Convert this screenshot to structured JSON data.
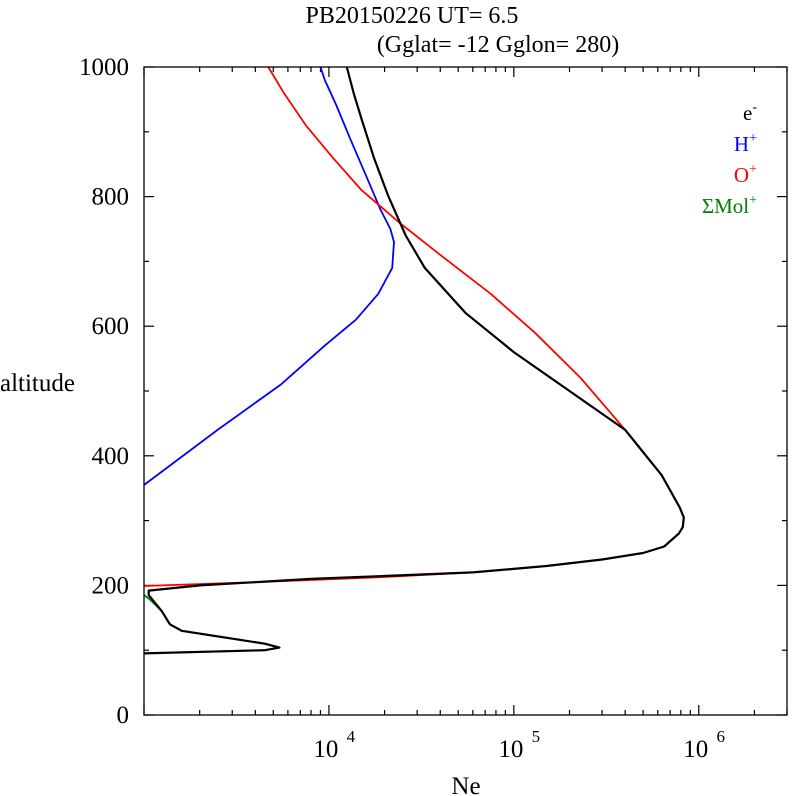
{
  "chart_data": {
    "type": "line",
    "title_line1": "PB20150226   UT=  6.5",
    "title_line2": "(Gglat= -12   Gglon=  280)",
    "xlabel": "Ne",
    "ylabel": "altitude",
    "x_scale": "log",
    "xlim": [
      1000,
      3000000
    ],
    "ylim": [
      0,
      1000
    ],
    "y_ticks": [
      {
        "value": 0,
        "label": "0"
      },
      {
        "value": 200,
        "label": "200"
      },
      {
        "value": 400,
        "label": "400"
      },
      {
        "value": 600,
        "label": "600"
      },
      {
        "value": 800,
        "label": "800"
      },
      {
        "value": 1000,
        "label": "1000"
      }
    ],
    "x_ticks": [
      {
        "value": 10000,
        "base": "10",
        "exp": "4"
      },
      {
        "value": 100000,
        "base": "10",
        "exp": "5"
      },
      {
        "value": 1000000,
        "base": "10",
        "exp": "6"
      }
    ],
    "grid": false,
    "legend_position": "top-right",
    "series": [
      {
        "name": "e-",
        "legend_base": "e",
        "legend_sup": "-",
        "color": "#000000",
        "points": [
          [
            12500,
            1000
          ],
          [
            13600,
            960
          ],
          [
            15000,
            920
          ],
          [
            17500,
            860
          ],
          [
            21000,
            800
          ],
          [
            26000,
            740
          ],
          [
            33000,
            690
          ],
          [
            55000,
            620
          ],
          [
            100000,
            560
          ],
          [
            200000,
            500
          ],
          [
            400000,
            440
          ],
          [
            630000,
            370
          ],
          [
            790000,
            320
          ],
          [
            830000,
            305
          ],
          [
            820000,
            290
          ],
          [
            780000,
            280
          ],
          [
            650000,
            260
          ],
          [
            500000,
            250
          ],
          [
            300000,
            240
          ],
          [
            150000,
            230
          ],
          [
            60000,
            220
          ],
          [
            8000,
            210
          ],
          [
            2000,
            200
          ],
          [
            1060,
            192
          ],
          [
            1060,
            185
          ],
          [
            1250,
            160
          ],
          [
            1380,
            140
          ],
          [
            1600,
            130
          ],
          [
            4500,
            110
          ],
          [
            5400,
            104
          ],
          [
            4500,
            100
          ],
          [
            1000,
            95
          ]
        ]
      },
      {
        "name": "H+",
        "legend_base": "H",
        "legend_sup": "+",
        "color": "#0000ff",
        "points": [
          [
            9000,
            1000
          ],
          [
            9500,
            980
          ],
          [
            11000,
            940
          ],
          [
            13000,
            890
          ],
          [
            16000,
            830
          ],
          [
            19000,
            780
          ],
          [
            21500,
            750
          ],
          [
            22500,
            730
          ],
          [
            22000,
            690
          ],
          [
            18500,
            650
          ],
          [
            14000,
            610
          ],
          [
            9500,
            570
          ],
          [
            5500,
            510
          ],
          [
            2500,
            440
          ],
          [
            1000,
            355
          ]
        ]
      },
      {
        "name": "O+",
        "legend_base": "O",
        "legend_sup": "+",
        "color": "#ff0000",
        "points": [
          [
            4700,
            1000
          ],
          [
            5700,
            960
          ],
          [
            7500,
            910
          ],
          [
            10500,
            860
          ],
          [
            15000,
            810
          ],
          [
            24000,
            760
          ],
          [
            40000,
            710
          ],
          [
            75000,
            650
          ],
          [
            130000,
            590
          ],
          [
            230000,
            520
          ],
          [
            400000,
            440
          ],
          [
            630000,
            370
          ],
          [
            790000,
            320
          ],
          [
            830000,
            305
          ],
          [
            820000,
            290
          ],
          [
            780000,
            280
          ],
          [
            650000,
            260
          ],
          [
            500000,
            250
          ],
          [
            300000,
            240
          ],
          [
            150000,
            230
          ],
          [
            60000,
            220
          ],
          [
            20000,
            213
          ],
          [
            4000,
            205
          ],
          [
            1000,
            199
          ]
        ]
      },
      {
        "name": "ΣMol+",
        "legend_base": "ΣMol",
        "legend_sup": "+",
        "color": "#008000",
        "points": [
          [
            1000,
            185
          ],
          [
            1060,
            180
          ],
          [
            1250,
            160
          ],
          [
            1380,
            140
          ],
          [
            1600,
            130
          ],
          [
            4500,
            110
          ],
          [
            5400,
            104
          ],
          [
            4500,
            100
          ],
          [
            1000,
            95
          ]
        ]
      }
    ]
  }
}
